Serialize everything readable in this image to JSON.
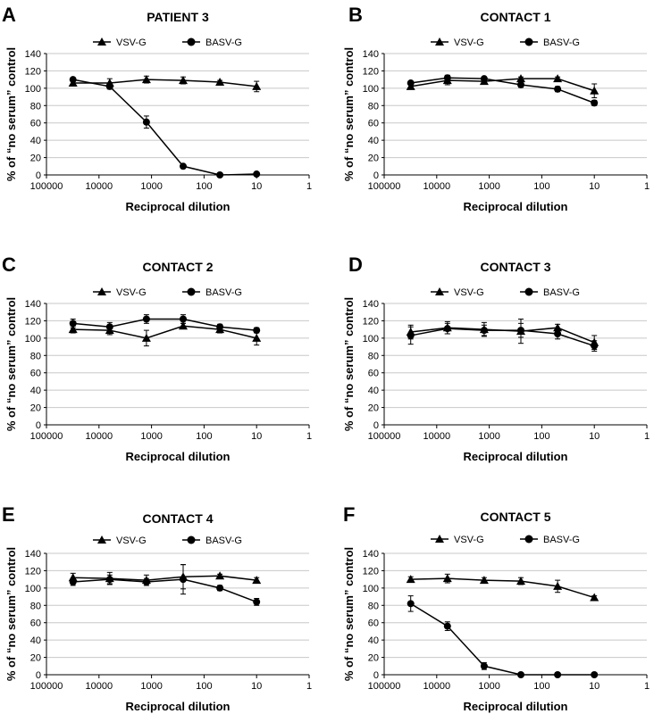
{
  "chart_data": [
    {
      "panel": "A",
      "title": "PATIENT 3",
      "type": "line",
      "xlabel": "Reciprocal dilution",
      "ylabel": "% of “no serum” control",
      "x_scale": "log",
      "x_reversed": true,
      "xlim": [
        100000,
        1
      ],
      "ylim": [
        0,
        140
      ],
      "x_ticks": [
        100000,
        10000,
        1000,
        100,
        10,
        1
      ],
      "y_ticks": [
        0,
        20,
        40,
        60,
        80,
        100,
        120,
        140
      ],
      "grid": "horizontal",
      "legend_position": "top",
      "series": [
        {
          "name": "VSV-G",
          "marker": "triangle",
          "x": [
            31250,
            6250,
            1250,
            250,
            50,
            10
          ],
          "y": [
            106,
            106,
            110,
            109,
            107,
            102
          ],
          "err": [
            3,
            5,
            4,
            4,
            2,
            6
          ]
        },
        {
          "name": "BASV-G",
          "marker": "circle",
          "x": [
            31250,
            6250,
            1250,
            250,
            50,
            10
          ],
          "y": [
            110,
            102,
            61,
            10,
            0,
            1
          ],
          "err": [
            2,
            3,
            7,
            2,
            1,
            2
          ]
        }
      ]
    },
    {
      "panel": "B",
      "title": "CONTACT 1",
      "type": "line",
      "xlabel": "Reciprocal dilution",
      "ylabel": "% of “no serum” control",
      "x_scale": "log",
      "x_reversed": true,
      "xlim": [
        100000,
        1
      ],
      "ylim": [
        0,
        140
      ],
      "x_ticks": [
        100000,
        10000,
        1000,
        100,
        10,
        1
      ],
      "y_ticks": [
        0,
        20,
        40,
        60,
        80,
        100,
        120,
        140
      ],
      "grid": "horizontal",
      "legend_position": "top",
      "series": [
        {
          "name": "VSV-G",
          "marker": "triangle",
          "x": [
            31250,
            6250,
            1250,
            250,
            50,
            10
          ],
          "y": [
            102,
            109,
            108,
            111,
            111,
            97
          ],
          "err": [
            2,
            5,
            3,
            2,
            2,
            8
          ]
        },
        {
          "name": "BASV-G",
          "marker": "circle",
          "x": [
            31250,
            6250,
            1250,
            250,
            50,
            10
          ],
          "y": [
            106,
            112,
            111,
            104,
            99,
            83
          ],
          "err": [
            2,
            3,
            2,
            3,
            3,
            3
          ]
        }
      ]
    },
    {
      "panel": "C",
      "title": "CONTACT 2",
      "type": "line",
      "xlabel": "Reciprocal dilution",
      "ylabel": "% of “no serum” control",
      "x_scale": "log",
      "x_reversed": true,
      "xlim": [
        100000,
        1
      ],
      "ylim": [
        0,
        140
      ],
      "x_ticks": [
        100000,
        10000,
        1000,
        100,
        10,
        1
      ],
      "y_ticks": [
        0,
        20,
        40,
        60,
        80,
        100,
        120,
        140
      ],
      "grid": "horizontal",
      "legend_position": "top",
      "series": [
        {
          "name": "VSV-G",
          "marker": "triangle",
          "x": [
            31250,
            6250,
            1250,
            250,
            50,
            10
          ],
          "y": [
            110,
            109,
            100,
            114,
            110,
            100
          ],
          "err": [
            4,
            5,
            9,
            3,
            4,
            8
          ]
        },
        {
          "name": "BASV-G",
          "marker": "circle",
          "x": [
            31250,
            6250,
            1250,
            250,
            50,
            10
          ],
          "y": [
            117,
            113,
            122,
            122,
            113,
            109
          ],
          "err": [
            5,
            5,
            5,
            5,
            3,
            3
          ]
        }
      ]
    },
    {
      "panel": "D",
      "title": "CONTACT 3",
      "type": "line",
      "xlabel": "Reciprocal dilution",
      "ylabel": "% of “no serum” control",
      "x_scale": "log",
      "x_reversed": true,
      "xlim": [
        100000,
        1
      ],
      "ylim": [
        0,
        140
      ],
      "x_ticks": [
        100000,
        10000,
        1000,
        100,
        10,
        1
      ],
      "y_ticks": [
        0,
        20,
        40,
        60,
        80,
        100,
        120,
        140
      ],
      "grid": "horizontal",
      "legend_position": "top",
      "series": [
        {
          "name": "VSV-G",
          "marker": "triangle",
          "x": [
            31250,
            6250,
            1250,
            250,
            50,
            10
          ],
          "y": [
            107,
            112,
            110,
            108,
            112,
            95
          ],
          "err": [
            8,
            7,
            8,
            14,
            4,
            8
          ]
        },
        {
          "name": "BASV-G",
          "marker": "circle",
          "x": [
            31250,
            6250,
            1250,
            250,
            50,
            10
          ],
          "y": [
            103,
            111,
            109,
            109,
            105,
            91
          ],
          "err": [
            10,
            6,
            6,
            8,
            6,
            6
          ]
        }
      ]
    },
    {
      "panel": "E",
      "title": "CONTACT 4",
      "type": "line",
      "xlabel": "Reciprocal dilution",
      "ylabel": "% of “no serum” control",
      "x_scale": "log",
      "x_reversed": true,
      "xlim": [
        100000,
        1
      ],
      "ylim": [
        0,
        140
      ],
      "x_ticks": [
        100000,
        10000,
        1000,
        100,
        10,
        1
      ],
      "y_ticks": [
        0,
        20,
        40,
        60,
        80,
        100,
        120,
        140
      ],
      "grid": "horizontal",
      "legend_position": "top",
      "series": [
        {
          "name": "VSV-G",
          "marker": "triangle",
          "x": [
            31250,
            6250,
            1250,
            250,
            50,
            10
          ],
          "y": [
            112,
            111,
            109,
            113,
            114,
            109
          ],
          "err": [
            5,
            7,
            6,
            14,
            2,
            3
          ]
        },
        {
          "name": "BASV-G",
          "marker": "circle",
          "x": [
            31250,
            6250,
            1250,
            250,
            50,
            10
          ],
          "y": [
            107,
            110,
            107,
            110,
            100,
            84
          ],
          "err": [
            4,
            5,
            4,
            17,
            3,
            4
          ]
        }
      ]
    },
    {
      "panel": "F",
      "title": "CONTACT 5",
      "type": "line",
      "xlabel": "Reciprocal dilution",
      "ylabel": "% of “no serum” control",
      "x_scale": "log",
      "x_reversed": true,
      "xlim": [
        100000,
        1
      ],
      "ylim": [
        0,
        140
      ],
      "x_ticks": [
        100000,
        10000,
        1000,
        100,
        10,
        1
      ],
      "y_ticks": [
        0,
        20,
        40,
        60,
        80,
        100,
        120,
        140
      ],
      "grid": "horizontal",
      "legend_position": "top",
      "series": [
        {
          "name": "VSV-G",
          "marker": "triangle",
          "x": [
            31250,
            6250,
            1250,
            250,
            50,
            10
          ],
          "y": [
            110,
            111,
            109,
            108,
            102,
            89
          ],
          "err": [
            3,
            5,
            3,
            4,
            7,
            2
          ]
        },
        {
          "name": "BASV-G",
          "marker": "circle",
          "x": [
            31250,
            6250,
            1250,
            250,
            50,
            10
          ],
          "y": [
            82,
            56,
            10,
            0,
            0,
            0
          ],
          "err": [
            9,
            5,
            4,
            1,
            1,
            1
          ]
        }
      ]
    }
  ]
}
